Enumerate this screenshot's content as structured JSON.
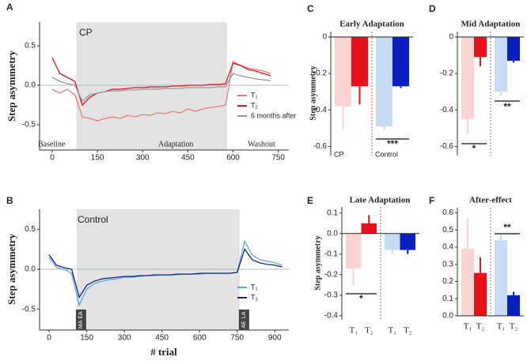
{
  "chart_data": [
    {
      "type": "line",
      "panel": "A",
      "annotation": "CP",
      "region_labels": [
        "Baseline",
        "Adaptation",
        "Washout"
      ],
      "ylabel": "Step asymmetry",
      "xlim": [
        -42,
        785
      ],
      "ylim": [
        -0.82,
        0.8
      ],
      "xticks": [
        0,
        150,
        300,
        450,
        600,
        750
      ],
      "yticks": [
        -0.5,
        {
          "value": 0,
          "label": "0.0"
        },
        0.5
      ],
      "shade": [
        80,
        580
      ],
      "hline": 0,
      "x": [
        0,
        25,
        50,
        75,
        100,
        125,
        150,
        175,
        200,
        225,
        250,
        275,
        300,
        325,
        350,
        375,
        400,
        425,
        450,
        475,
        500,
        525,
        550,
        575,
        600,
        625,
        650,
        675,
        700,
        725
      ],
      "series": [
        {
          "name": "T₁",
          "color": "#f07878",
          "values": [
            -0.05,
            -0.1,
            -0.05,
            -0.12,
            -0.4,
            -0.42,
            -0.45,
            -0.42,
            -0.4,
            -0.42,
            -0.38,
            -0.4,
            -0.37,
            -0.38,
            -0.35,
            -0.36,
            -0.33,
            -0.35,
            -0.3,
            -0.33,
            -0.3,
            -0.28,
            -0.27,
            -0.25,
            0.3,
            0.25,
            0.22,
            0.2,
            0.18,
            0.15
          ]
        },
        {
          "name": "T₂",
          "color": "#e0141c",
          "values": [
            0.35,
            0.15,
            0.1,
            0.05,
            -0.25,
            -0.15,
            -0.1,
            -0.08,
            -0.05,
            -0.05,
            -0.04,
            -0.03,
            -0.03,
            -0.02,
            -0.02,
            -0.02,
            -0.01,
            -0.01,
            0,
            0,
            0,
            0.01,
            0.01,
            0.02,
            0.28,
            0.25,
            0.2,
            0.18,
            0.15,
            0.12
          ]
        },
        {
          "name": "6 months after",
          "color": "#999999",
          "values": [
            0.1,
            0.05,
            0.02,
            0,
            -0.2,
            -0.12,
            -0.1,
            -0.08,
            -0.07,
            -0.07,
            -0.06,
            -0.06,
            -0.05,
            -0.05,
            -0.05,
            -0.04,
            -0.04,
            -0.04,
            -0.03,
            -0.03,
            -0.03,
            -0.03,
            -0.02,
            -0.02,
            0.15,
            0.12,
            0.1,
            0.08,
            0.07,
            0.06
          ]
        }
      ]
    },
    {
      "type": "line",
      "panel": "B",
      "annotation": "Control",
      "markers": [
        [
          "EA",
          "MA"
        ],
        [
          "LA",
          "AE"
        ]
      ],
      "ylabel": "Step asymmetry",
      "xlabel": "# trial",
      "xlim": [
        -38,
        956
      ],
      "ylim": [
        -0.76,
        0.75
      ],
      "xticks": [
        0,
        150,
        300,
        450,
        600,
        750,
        900
      ],
      "yticks": [
        -0.5,
        {
          "value": 0,
          "label": "0.0"
        },
        0.5
      ],
      "shade": [
        110,
        760
      ],
      "hline": 0,
      "x": [
        0,
        30,
        60,
        90,
        120,
        150,
        180,
        210,
        240,
        270,
        300,
        330,
        360,
        390,
        420,
        450,
        480,
        510,
        540,
        570,
        600,
        630,
        660,
        690,
        720,
        750,
        780,
        810,
        840,
        870,
        900,
        930
      ],
      "series": [
        {
          "name": "T₁",
          "color": "#5aa9e6",
          "values": [
            0.15,
            0.02,
            0,
            -0.05,
            -0.45,
            -0.25,
            -0.18,
            -0.15,
            -0.13,
            -0.12,
            -0.1,
            -0.1,
            -0.09,
            -0.08,
            -0.08,
            -0.07,
            -0.07,
            -0.07,
            -0.06,
            -0.06,
            -0.06,
            -0.05,
            -0.05,
            -0.05,
            -0.05,
            -0.04,
            0.35,
            0.18,
            0.12,
            0.1,
            0.08,
            0.05
          ]
        },
        {
          "name": "T₂",
          "color": "#1a237e",
          "values": [
            0.18,
            0.05,
            0.02,
            0,
            -0.35,
            -0.2,
            -0.15,
            -0.12,
            -0.11,
            -0.1,
            -0.09,
            -0.09,
            -0.08,
            -0.08,
            -0.07,
            -0.07,
            -0.07,
            -0.06,
            -0.06,
            -0.06,
            -0.05,
            -0.05,
            -0.05,
            -0.05,
            -0.05,
            -0.04,
            0.25,
            0.12,
            0.08,
            0.06,
            0.05,
            0.03
          ]
        }
      ]
    },
    {
      "type": "bar",
      "panel": "C",
      "title": "Early Adaptation",
      "ylabel": "Step asymmetry",
      "groups": [
        "CP",
        "Control"
      ],
      "significance": [
        "***"
      ],
      "ylim": [
        -0.65,
        0.03
      ],
      "yticks": [
        0,
        -0.2,
        -0.4,
        -0.6
      ],
      "colors": [
        "#fcd3d3",
        "#e8121a",
        "#c6dcf5",
        "#0a1fbf"
      ],
      "values": [
        -0.38,
        -0.27,
        -0.49,
        -0.27
      ],
      "errors": [
        0.13,
        0.1,
        0.02,
        0.01
      ]
    },
    {
      "type": "bar",
      "panel": "D",
      "title": "Mid Adaptation",
      "significance": [
        "*",
        "**"
      ],
      "ylim": [
        -0.65,
        0.03
      ],
      "yticks": [
        0,
        -0.2,
        -0.4,
        -0.6
      ],
      "colors": [
        "#fcd3d3",
        "#e8121a",
        "#c6dcf5",
        "#0a1fbf"
      ],
      "values": [
        -0.45,
        -0.11,
        -0.3,
        -0.13
      ],
      "errors": [
        0.08,
        0.05,
        0.02,
        0.01
      ]
    },
    {
      "type": "bar",
      "panel": "E",
      "title": "Late Adaptation",
      "ylabel": "Step asymmetry",
      "categories": [
        "T₁",
        "T₂",
        "T₁",
        "T₂"
      ],
      "significance": [
        "*"
      ],
      "ylim": [
        -0.42,
        0.13
      ],
      "yticks": [
        0.1,
        {
          "value": 0,
          "label": "0.0"
        },
        -0.1,
        -0.2,
        -0.3,
        -0.4
      ],
      "colors": [
        "#fcd3d3",
        "#e8121a",
        "#c6dcf5",
        "#0a1fbf"
      ],
      "values": [
        -0.17,
        0.05,
        -0.08,
        -0.08
      ],
      "errors": [
        0.08,
        0.04,
        0.02,
        0.02
      ]
    },
    {
      "type": "bar",
      "panel": "F",
      "title": "After-effect",
      "categories": [
        "T₁",
        "T₂",
        "T₁",
        "T₂"
      ],
      "significance": [
        "**"
      ],
      "ylim": [
        0,
        0.63
      ],
      "yticks": [
        {
          "value": 0,
          "label": "0.0"
        },
        0.1,
        0.2,
        0.3,
        0.4,
        0.5,
        0.6
      ],
      "colors": [
        "#fcd3d3",
        "#e8121a",
        "#c6dcf5",
        "#0a1fbf"
      ],
      "values": [
        0.39,
        0.25,
        0.44,
        0.12
      ],
      "errors": [
        0.18,
        0.09,
        0.03,
        0.02
      ]
    }
  ]
}
